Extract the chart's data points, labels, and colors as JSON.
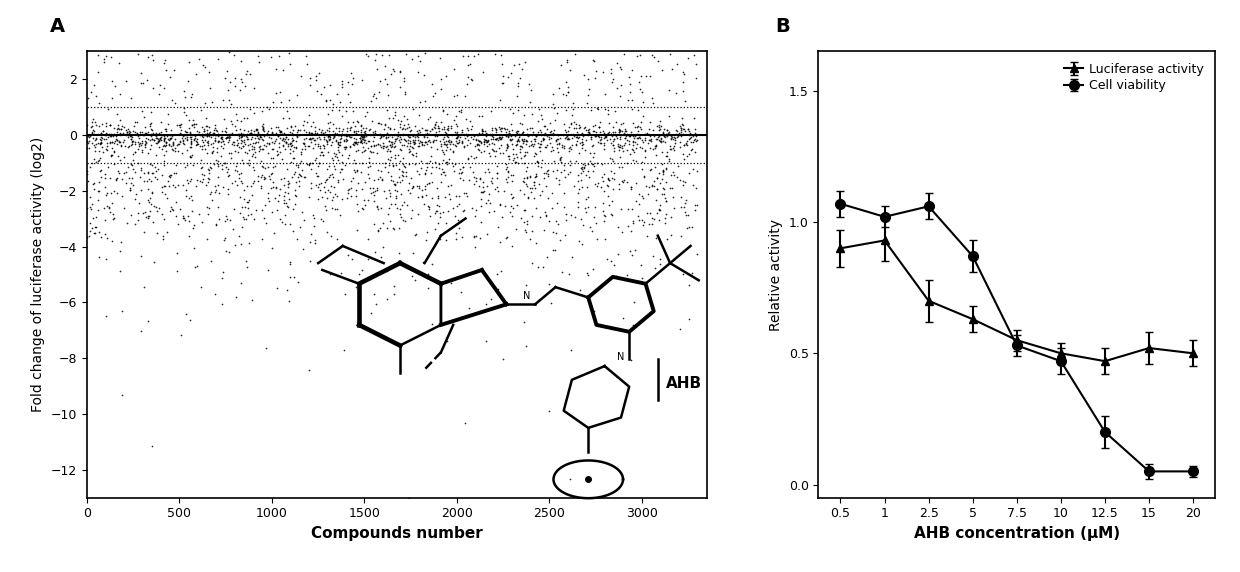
{
  "panel_A": {
    "label": "A",
    "xlabel": "Compounds number",
    "ylabel": "Fold change of luciferase activity (log2)",
    "xlim": [
      0,
      3350
    ],
    "ylim": [
      -13,
      3
    ],
    "xticks": [
      0,
      500,
      1000,
      1500,
      2000,
      2500,
      3000
    ],
    "yticks": [
      -12,
      -10,
      -8,
      -6,
      -4,
      -2,
      0,
      2
    ],
    "hline_solid": 0,
    "hline_dotted_upper": 1.0,
    "hline_dotted_lower": -1.0,
    "n_points": 3300,
    "seed": 42,
    "ahb_label": "AHB"
  },
  "panel_B": {
    "label": "B",
    "xlabel": "AHB concentration (μM)",
    "ylabel": "Relative activity",
    "ylim": [
      -0.05,
      1.65
    ],
    "yticks": [
      0.0,
      0.5,
      1.0,
      1.5
    ],
    "x_values": [
      0.5,
      1,
      2.5,
      5,
      7.5,
      10,
      12.5,
      15,
      20
    ],
    "x_labels": [
      "0.5",
      "1",
      "2.5",
      "5",
      "7.5",
      "10",
      "12.5",
      "15",
      "20"
    ],
    "luciferase_y": [
      0.9,
      0.93,
      0.7,
      0.63,
      0.55,
      0.5,
      0.47,
      0.52,
      0.5
    ],
    "luciferase_err": [
      0.07,
      0.08,
      0.08,
      0.05,
      0.04,
      0.04,
      0.05,
      0.06,
      0.05
    ],
    "cell_viability_y": [
      1.07,
      1.02,
      1.06,
      0.87,
      0.53,
      0.47,
      0.2,
      0.05,
      0.05
    ],
    "cell_viability_err": [
      0.05,
      0.04,
      0.05,
      0.06,
      0.04,
      0.05,
      0.06,
      0.03,
      0.02
    ],
    "legend_luciferase": "Luciferase activity",
    "legend_cell": "Cell viability",
    "marker_luciferase": "^",
    "marker_cell": "o",
    "line_color": "#000000"
  }
}
